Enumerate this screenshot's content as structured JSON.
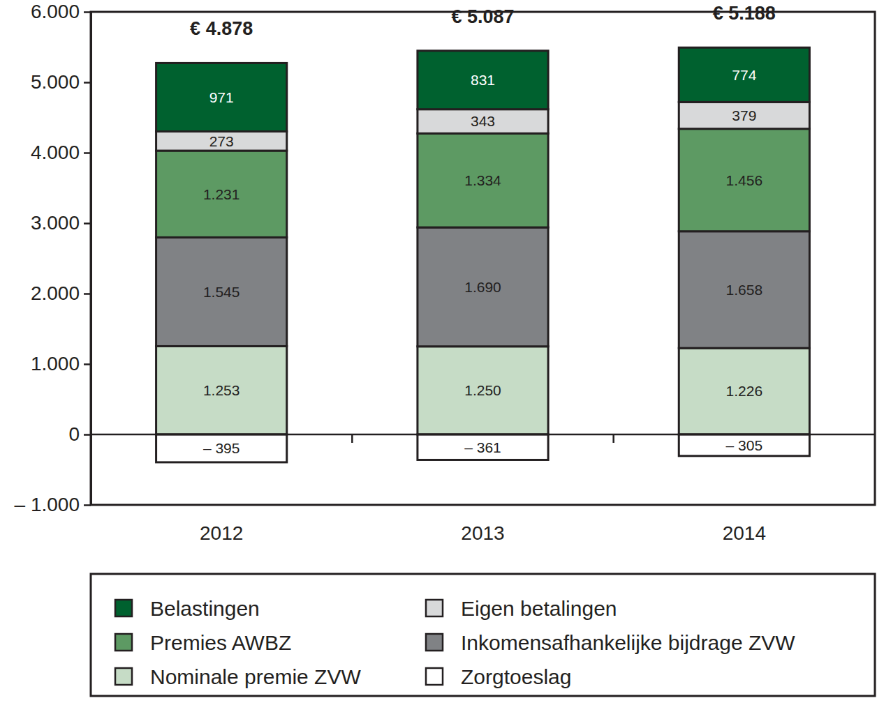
{
  "chart_data": {
    "type": "bar",
    "stacked": true,
    "data_labels": true,
    "legend": "bottom",
    "categories": [
      "2012",
      "2013",
      "2014"
    ],
    "series": [
      {
        "name": "Nominale premie ZVW",
        "color": "#c6dcc6",
        "values": [
          1253,
          1250,
          1226
        ],
        "value_labels": [
          "1.253",
          "1.250",
          "1.226"
        ]
      },
      {
        "name": "Inkomensafhankelijke bijdrage ZVW",
        "color": "#808285",
        "values": [
          1545,
          1690,
          1658
        ],
        "value_labels": [
          "1.545",
          "1.690",
          "1.658"
        ]
      },
      {
        "name": "Premies AWBZ",
        "color": "#5d9a63",
        "values": [
          1231,
          1334,
          1456
        ],
        "value_labels": [
          "1.231",
          "1.334",
          "1.456"
        ]
      },
      {
        "name": "Eigen betalingen",
        "color": "#d8d9da",
        "values": [
          273,
          343,
          379
        ],
        "value_labels": [
          "273",
          "343",
          "379"
        ]
      },
      {
        "name": "Belastingen",
        "color": "#00612f",
        "values": [
          971,
          831,
          774
        ],
        "value_labels": [
          "971",
          "831",
          "774"
        ]
      },
      {
        "name": "Zorgtoeslag",
        "color": "#ffffff",
        "values": [
          -395,
          -361,
          -305
        ],
        "value_labels": [
          "– 395",
          "– 361",
          "– 305"
        ]
      }
    ],
    "totals": {
      "values": [
        4878,
        5087,
        5188
      ],
      "value_labels": [
        "€ 4.878",
        "€ 5.087",
        "€ 5.188"
      ]
    },
    "ylim": [
      -1000,
      6000
    ],
    "yticks": [
      {
        "value": -1000,
        "label": "– 1.000"
      },
      0,
      {
        "value": 1000,
        "label": "1.000"
      },
      {
        "value": 2000,
        "label": "2.000"
      },
      {
        "value": 3000,
        "label": "3.000"
      },
      {
        "value": 4000,
        "label": "4.000"
      },
      {
        "value": 5000,
        "label": "5.000"
      },
      {
        "value": 6000,
        "label": "6.000"
      }
    ]
  }
}
